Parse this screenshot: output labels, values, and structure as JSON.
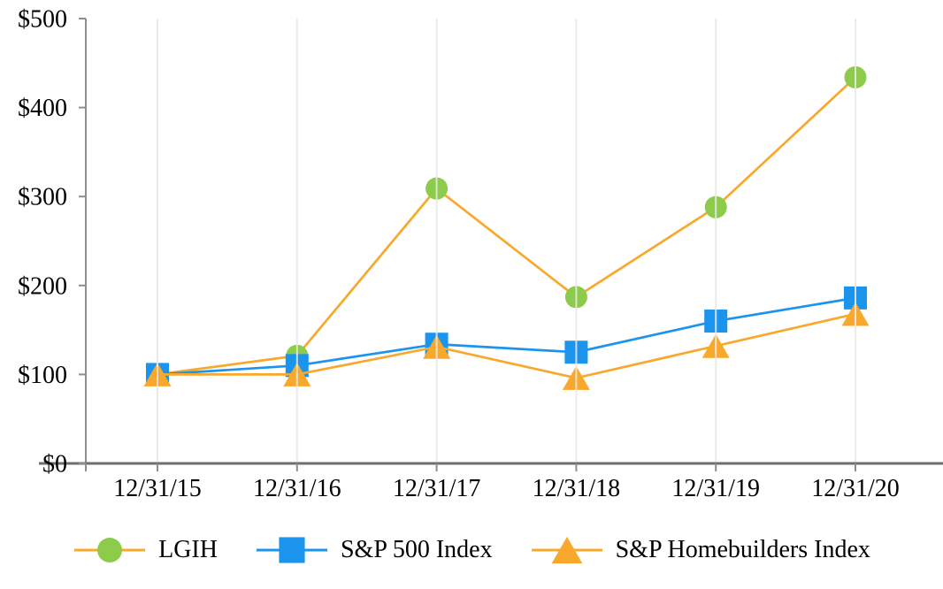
{
  "chart_data": {
    "type": "line",
    "title": "",
    "xlabel": "",
    "ylabel": "",
    "categories": [
      "12/31/15",
      "12/31/16",
      "12/31/17",
      "12/31/18",
      "12/31/19",
      "12/31/20"
    ],
    "y_tick_labels": [
      "$0",
      "$100",
      "$200",
      "$300",
      "$400",
      "$500"
    ],
    "y_tick_values": [
      0,
      100,
      200,
      300,
      400,
      500
    ],
    "ylim": [
      0,
      500
    ],
    "grid": "vertical light gridline at each date",
    "legend_position": "bottom center",
    "series": [
      {
        "name": "LGIH",
        "marker": "circle",
        "marker_color": "#8DCB4A",
        "line_color": "#F8A92B",
        "values": [
          100,
          121,
          309,
          187,
          288,
          434
        ]
      },
      {
        "name": "S&P 500 Index",
        "marker": "square",
        "marker_color": "#1B94EE",
        "line_color": "#1B94EE",
        "values": [
          100,
          110,
          134,
          125,
          160,
          186
        ]
      },
      {
        "name": "S&P Homebuilders Index",
        "marker": "triangle",
        "marker_color": "#F8A92B",
        "line_color": "#F8A92B",
        "values": [
          100,
          100,
          131,
          96,
          132,
          168
        ]
      }
    ]
  },
  "colors": {
    "background": "#FFFFFF",
    "gridline": "#E8E8E8",
    "y_axis": "#8E8E8E",
    "x_axis": "#6E6E6E",
    "tick": "#8E8E8E",
    "text": "#000000"
  }
}
